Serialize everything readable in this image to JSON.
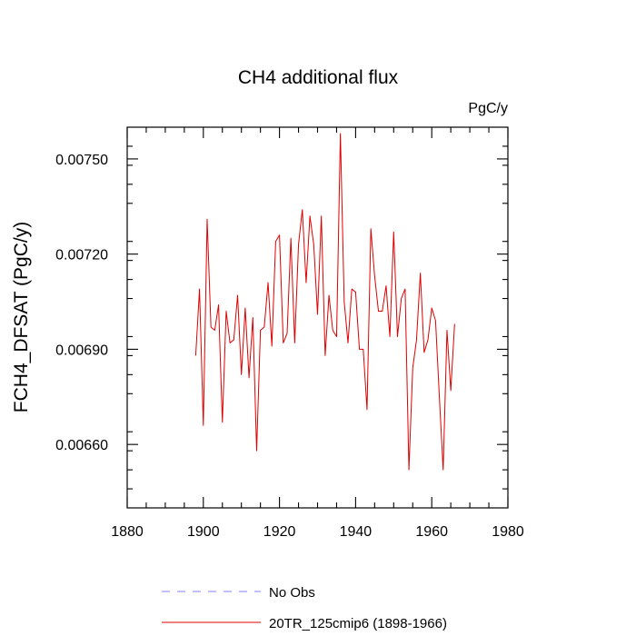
{
  "chart_data": {
    "type": "line",
    "title": "CH4 additional flux",
    "units_label": "PgC/y",
    "xlabel": "",
    "ylabel": "FCH4_DFSAT  (PgC/y)",
    "xlim": [
      1880,
      1980
    ],
    "ylim": [
      0.0064,
      0.0076
    ],
    "x_ticks": [
      1880,
      1900,
      1920,
      1940,
      1960,
      1980
    ],
    "x_tick_labels": [
      "1880",
      "1900",
      "1920",
      "1940",
      "1960",
      "1980"
    ],
    "y_ticks": [
      0.0066,
      0.0069,
      0.0072,
      0.0075
    ],
    "y_tick_labels": [
      "0.00660",
      "0.00690",
      "0.00720",
      "0.00750"
    ],
    "grid": false,
    "legend_position": "bottom",
    "series": [
      {
        "name": "No Obs",
        "legend_label": "No Obs",
        "color": "#8080ff",
        "dash": "dashed",
        "x": [],
        "values": []
      },
      {
        "name": "20TR_125cmip6",
        "legend_label": "20TR_125cmip6 (1898-1966)",
        "color": "#e00000",
        "dash": "solid",
        "x": [
          1898,
          1899,
          1900,
          1901,
          1902,
          1903,
          1904,
          1905,
          1906,
          1907,
          1908,
          1909,
          1910,
          1911,
          1912,
          1913,
          1914,
          1915,
          1916,
          1917,
          1918,
          1919,
          1920,
          1921,
          1922,
          1923,
          1924,
          1925,
          1926,
          1927,
          1928,
          1929,
          1930,
          1931,
          1932,
          1933,
          1934,
          1935,
          1936,
          1937,
          1938,
          1939,
          1940,
          1941,
          1942,
          1943,
          1944,
          1945,
          1946,
          1947,
          1948,
          1949,
          1950,
          1951,
          1952,
          1953,
          1954,
          1955,
          1956,
          1957,
          1958,
          1959,
          1960,
          1961,
          1962,
          1963,
          1964,
          1965,
          1966
        ],
        "values": [
          0.00688,
          0.00709,
          0.00666,
          0.00731,
          0.00697,
          0.00696,
          0.00704,
          0.00667,
          0.00702,
          0.00692,
          0.00693,
          0.00707,
          0.00682,
          0.00703,
          0.00681,
          0.007,
          0.00658,
          0.00696,
          0.00697,
          0.00711,
          0.00691,
          0.00724,
          0.00726,
          0.00692,
          0.00695,
          0.00725,
          0.00692,
          0.00723,
          0.00734,
          0.00711,
          0.00732,
          0.00723,
          0.00701,
          0.00732,
          0.00688,
          0.00707,
          0.00696,
          0.00694,
          0.00758,
          0.00705,
          0.00692,
          0.00709,
          0.00708,
          0.0069,
          0.0069,
          0.00671,
          0.00728,
          0.00713,
          0.00702,
          0.00702,
          0.0071,
          0.00694,
          0.00727,
          0.00694,
          0.00706,
          0.00709,
          0.00652,
          0.00684,
          0.00693,
          0.00714,
          0.00689,
          0.00693,
          0.00703,
          0.00699,
          0.00675,
          0.00652,
          0.00696,
          0.00677,
          0.00698
        ]
      }
    ]
  }
}
